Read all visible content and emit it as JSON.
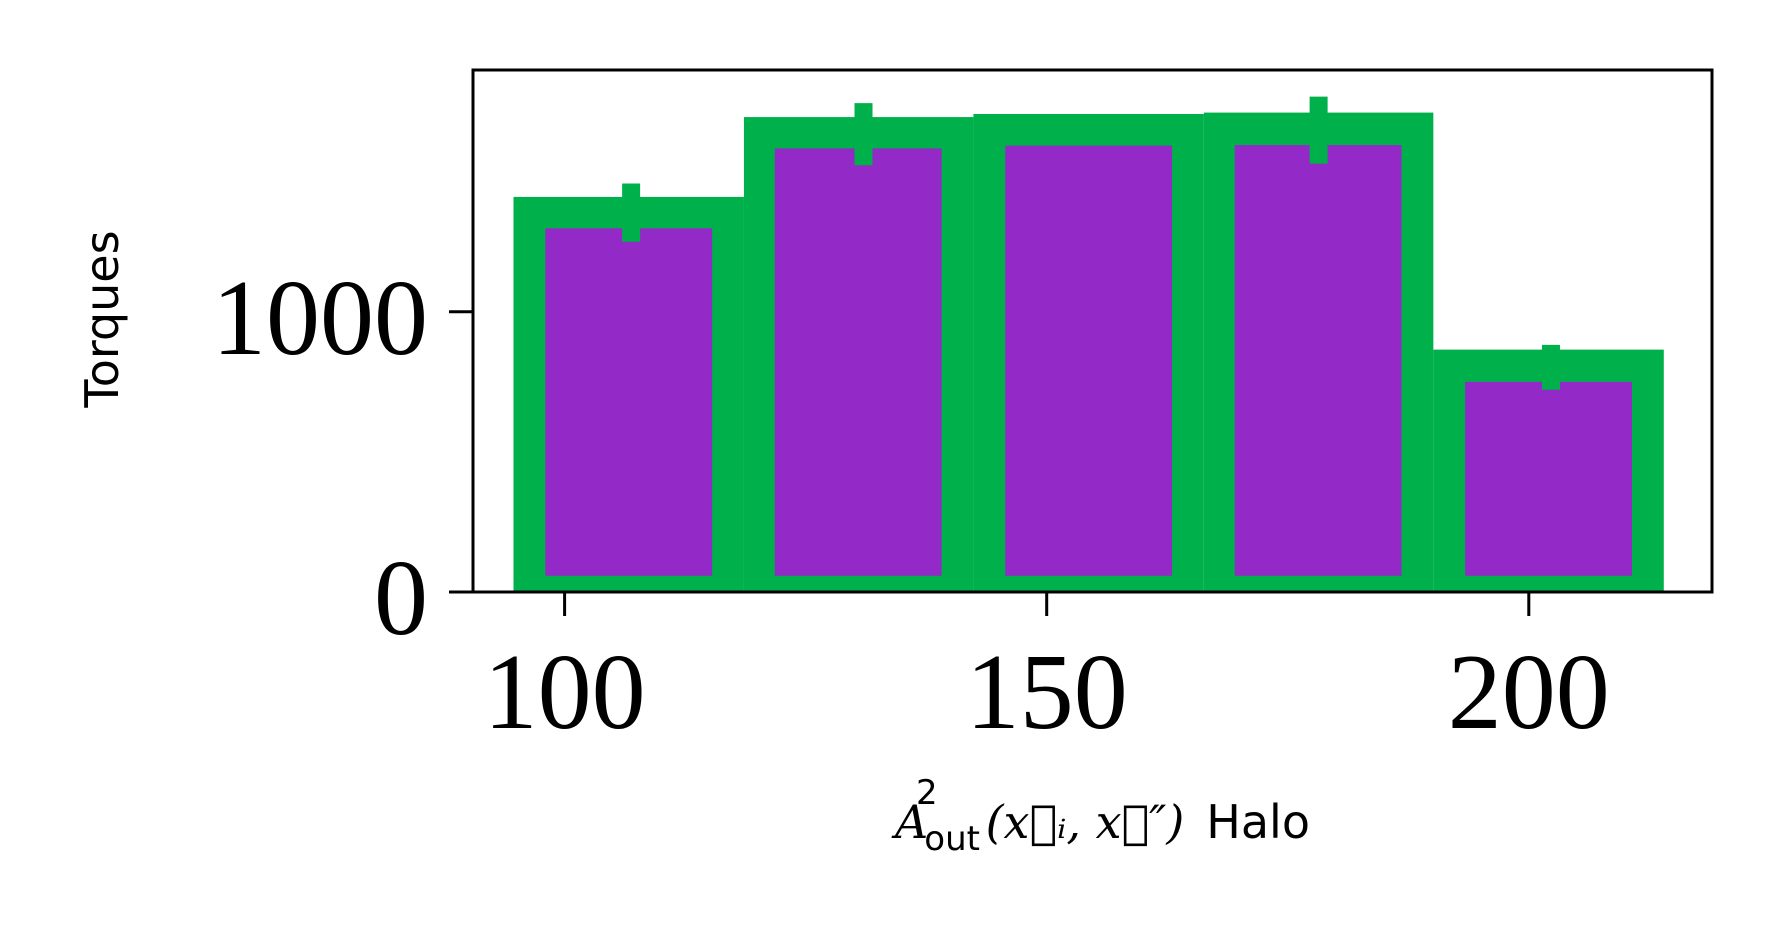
{
  "chart_data": {
    "type": "bar",
    "title": "",
    "xlabel_math": {
      "A": "A",
      "sup": "2",
      "sub": "out",
      "args": "(x⃗ᵢ, x⃗″)"
    },
    "xlabel_suffix": "Halo",
    "ylabel": "Torques",
    "xlim": [
      90.5,
      219.0
    ],
    "ylim": [
      0,
      1863
    ],
    "x_ticks": [
      100,
      150,
      200
    ],
    "y_ticks": [
      0,
      1000
    ],
    "colors": {
      "outer": "#00b04a",
      "inner": "#9329c7"
    },
    "series": [
      {
        "color": "#00b04a",
        "bins": [
          {
            "x0": 94.7,
            "x1": 118.6,
            "value": 1410
          },
          {
            "x0": 118.6,
            "x1": 142.4,
            "value": 1695
          },
          {
            "x0": 142.4,
            "x1": 166.3,
            "value": 1706
          },
          {
            "x0": 166.3,
            "x1": 190.1,
            "value": 1711
          },
          {
            "x0": 190.1,
            "x1": 214.0,
            "value": 865
          }
        ],
        "errors": [
          {
            "x": 106.9,
            "low": 1250,
            "high": 1458
          },
          {
            "x": 131.0,
            "low": 1523,
            "high": 1745
          },
          {
            "x": 178.2,
            "low": 1529,
            "high": 1768
          },
          {
            "x": 202.3,
            "low": 722,
            "high": 882
          }
        ]
      },
      {
        "color": "#9329c7",
        "bars": [
          {
            "x0": 98.0,
            "x1": 115.3,
            "bottom": 58,
            "value": 1298
          },
          {
            "x0": 121.8,
            "x1": 139.1,
            "bottom": 58,
            "value": 1583
          },
          {
            "x0": 145.7,
            "x1": 163.0,
            "bottom": 58,
            "value": 1593
          },
          {
            "x0": 169.5,
            "x1": 186.8,
            "bottom": 58,
            "value": 1595
          },
          {
            "x0": 193.4,
            "x1": 210.7,
            "bottom": 58,
            "value": 750
          }
        ]
      }
    ]
  }
}
